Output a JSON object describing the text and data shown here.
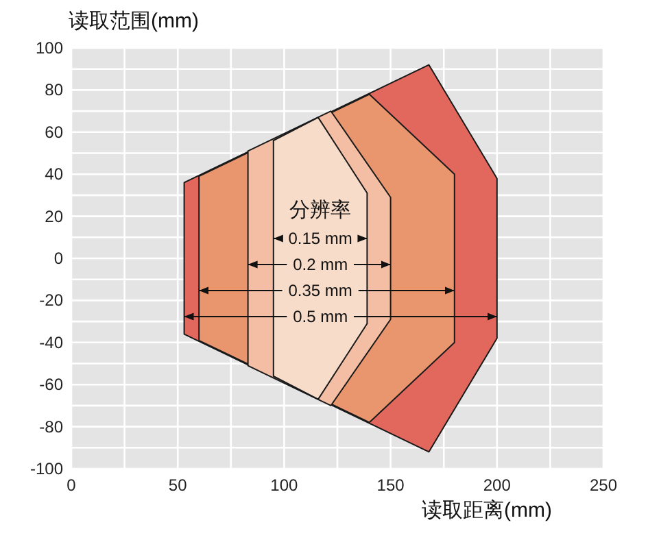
{
  "chart_data": {
    "type": "area",
    "ylabel": "读取范围(mm)",
    "xlabel": "读取距离(mm)",
    "xlim": [
      0,
      250
    ],
    "ylim": [
      -100,
      100
    ],
    "xticks": [
      0,
      {
        "value": 25,
        "label": null
      },
      50,
      {
        "value": 75,
        "label": null
      },
      100,
      {
        "value": 125,
        "label": null
      },
      150,
      {
        "value": 175,
        "label": null
      },
      200,
      {
        "value": 225,
        "label": null
      },
      250
    ],
    "yticks": [
      -100,
      {
        "value": -90,
        "label": null
      },
      -80,
      {
        "value": -70,
        "label": null
      },
      -60,
      {
        "value": -50,
        "label": null
      },
      -40,
      {
        "value": -30,
        "label": null
      },
      -20,
      {
        "value": -10,
        "label": null
      },
      0,
      {
        "value": 10,
        "label": null
      },
      20,
      {
        "value": 30,
        "label": null
      },
      40,
      {
        "value": 50,
        "label": null
      },
      60,
      {
        "value": 70,
        "label": null
      },
      80,
      {
        "value": 90,
        "label": null
      },
      100
    ],
    "grid": true,
    "annotations": [
      "分辨率"
    ],
    "series": [
      {
        "name": "0.5 mm",
        "color": "#e2685e",
        "x": [
          53,
          168,
          200
        ],
        "values": [
          36,
          92,
          38
        ]
      },
      {
        "color": "#e2685e",
        "x": [
          53,
          168,
          200
        ],
        "values": [
          -36,
          -92,
          -38
        ]
      },
      {
        "name": "0.35 mm",
        "color": "#e9966f",
        "x": [
          60,
          140,
          180
        ],
        "values": [
          39,
          78,
          40
        ]
      },
      {
        "color": "#e9966f",
        "x": [
          60,
          140,
          180
        ],
        "values": [
          -39,
          -78,
          -40
        ]
      },
      {
        "name": "0.2 mm",
        "color": "#f3bea4",
        "x": [
          83,
          122,
          150
        ],
        "values": [
          51,
          70,
          29
        ]
      },
      {
        "color": "#f3bea4",
        "x": [
          83,
          122,
          150
        ],
        "values": [
          -51,
          -70,
          -29
        ]
      },
      {
        "name": "0.15 mm",
        "color": "#f8dcca",
        "x": [
          95,
          116,
          139
        ],
        "values": [
          56,
          67,
          31
        ]
      },
      {
        "color": "#f8dcca",
        "x": [
          95,
          116,
          139
        ],
        "values": [
          -56,
          -67,
          -31
        ]
      }
    ]
  }
}
